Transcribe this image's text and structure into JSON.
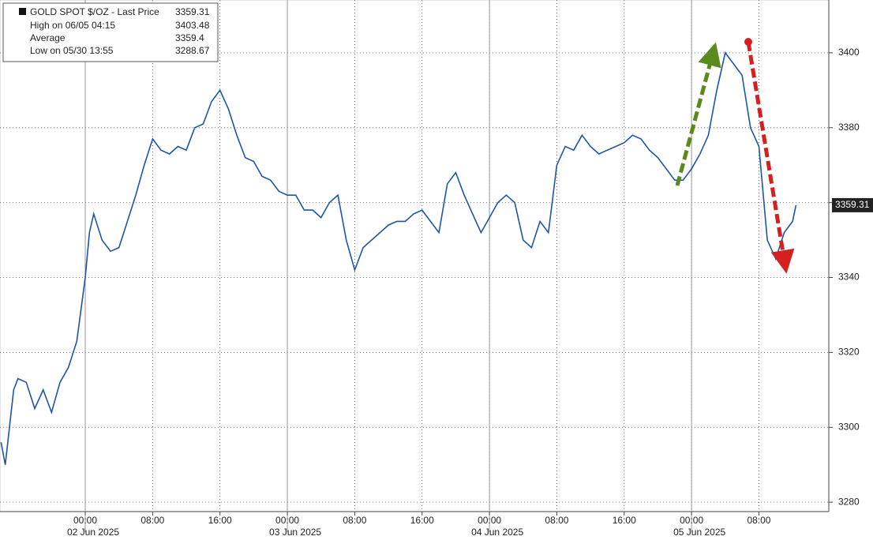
{
  "chart_data": {
    "type": "line",
    "title": "GOLD SPOT $/OZ - Last Price",
    "last_price": 3359.31,
    "stats": [
      {
        "label": "High on 06/05 04:15",
        "value": 3403.48
      },
      {
        "label": "Average",
        "value": 3359.4
      },
      {
        "label": "Low on 05/30 13:55",
        "value": 3288.67
      }
    ],
    "x": [
      -10,
      -9.5,
      -9,
      -8.5,
      -8,
      -7,
      -6,
      -5,
      -4,
      -3,
      -2,
      -1,
      0,
      0.5,
      1,
      2,
      3,
      4,
      5,
      6,
      7,
      8,
      9,
      10,
      11,
      12,
      13,
      14,
      15,
      16,
      17,
      18,
      19,
      20,
      21,
      22,
      23,
      24,
      25,
      26,
      27,
      28,
      29,
      30,
      31,
      32,
      33,
      34,
      35,
      36,
      37,
      38,
      39,
      40,
      41,
      42,
      43,
      44,
      45,
      46,
      47,
      48,
      49,
      50,
      51,
      52,
      53,
      54,
      55,
      56,
      57,
      58,
      59,
      60,
      61,
      62,
      63,
      64,
      65,
      66,
      67,
      68,
      69,
      70,
      71,
      72,
      73,
      74,
      75,
      76,
      77,
      78,
      79,
      80,
      81,
      82,
      83,
      84,
      84.4
    ],
    "series": [
      {
        "name": "GOLD SPOT $/OZ",
        "color": "#1d55a8",
        "values": [
          3296,
          3290,
          3300,
          3310,
          3313,
          3312,
          3305,
          3310,
          3304,
          3312,
          3316,
          3323,
          3340,
          3352,
          3357,
          3350,
          3347,
          3348,
          3355,
          3362,
          3370,
          3377,
          3374,
          3373,
          3375,
          3374,
          3380,
          3381,
          3387,
          3390,
          3385,
          3378,
          3372,
          3371,
          3367,
          3366,
          3363,
          3362,
          3362,
          3358,
          3358,
          3356,
          3360,
          3362,
          3350,
          3342,
          3348,
          3350,
          3352,
          3354,
          3355,
          3355,
          3357,
          3358,
          3355,
          3352,
          3365,
          3368,
          3362,
          3357,
          3352,
          3356,
          3360,
          3362,
          3360,
          3350,
          3348,
          3355,
          3352,
          3370,
          3375,
          3374,
          3378,
          3375,
          3373,
          3374,
          3375,
          3376,
          3378,
          3377,
          3374,
          3372,
          3369,
          3366,
          3366,
          3369,
          3373,
          3378,
          3390,
          3400,
          3397,
          3394,
          3380,
          3375,
          3350,
          3345,
          3352,
          3355,
          3359.31
        ]
      }
    ],
    "xlim": [
      -10.125,
      88.3
    ],
    "ylim": [
      3277.5,
      3414.1
    ],
    "yticks": [
      3280,
      3300,
      3320,
      3340,
      3360,
      3380,
      3400
    ],
    "xticks": [
      {
        "value": 0,
        "label": "00:00"
      },
      {
        "value": 8,
        "label": "08:00"
      },
      {
        "value": 16,
        "label": "16:00"
      },
      {
        "value": 24,
        "label": "00:00"
      },
      {
        "value": 32,
        "label": "08:00"
      },
      {
        "value": 40,
        "label": "16:00"
      },
      {
        "value": 48,
        "label": "00:00"
      },
      {
        "value": 56,
        "label": "08:00"
      },
      {
        "value": 64,
        "label": "16:00"
      },
      {
        "value": 72,
        "label": "00:00"
      },
      {
        "value": 80,
        "label": "08:00"
      }
    ],
    "date_ticks": [
      {
        "value": 0,
        "label": "02 Jun 2025"
      },
      {
        "value": 24,
        "label": "03 Jun 2025"
      },
      {
        "value": 48,
        "label": "04 Jun 2025"
      },
      {
        "value": 72,
        "label": "05 Jun 2025"
      }
    ],
    "grid": true
  }
}
